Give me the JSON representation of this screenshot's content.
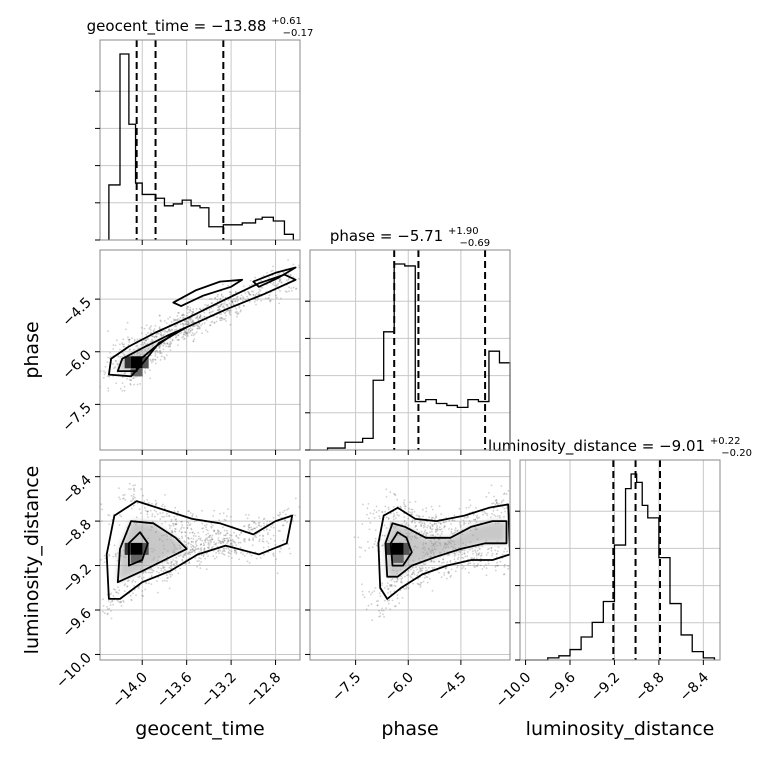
{
  "chart_data": {
    "type": "corner",
    "parameters": [
      {
        "name": "geocent_time",
        "title": "geocent_time = −13.88",
        "title_upper": "+0.61",
        "title_lower": "−0.17",
        "axis_label": "geocent_time",
        "range": [
          -14.38,
          -12.58
        ],
        "ticks": [
          -14.0,
          -13.6,
          -13.2,
          -12.8
        ],
        "tick_labels": [
          "−14.0",
          "−13.6",
          "−13.2",
          "−12.8"
        ],
        "quantiles": [
          -14.05,
          -13.88,
          -13.27
        ],
        "hist_edges": [
          -14.3,
          -14.2,
          -14.12,
          -14.06,
          -14.0,
          -13.88,
          -13.8,
          -13.72,
          -13.64,
          -13.56,
          -13.48,
          -13.4,
          -13.27,
          -13.1,
          -12.98,
          -12.92,
          -12.82,
          -12.72,
          -12.64
        ],
        "hist_heights": [
          0.29,
          0.98,
          0.61,
          0.3,
          0.24,
          0.22,
          0.18,
          0.19,
          0.21,
          0.18,
          0.17,
          0.07,
          0.08,
          0.09,
          0.11,
          0.12,
          0.1,
          0.03
        ]
      },
      {
        "name": "phase",
        "title": "phase = −5.71",
        "title_upper": "+1.90",
        "title_lower": "−0.69",
        "axis_label": "phase",
        "range": [
          -8.8,
          -3.1
        ],
        "ticks": [
          -7.5,
          -6.0,
          -4.5
        ],
        "tick_labels": [
          "−7.5",
          "−6.0",
          "−4.5"
        ],
        "quantiles": [
          -6.4,
          -5.71,
          -3.81
        ],
        "hist_edges": [
          -8.8,
          -8.3,
          -7.8,
          -7.3,
          -7.0,
          -6.7,
          -6.4,
          -6.1,
          -5.8,
          -5.5,
          -5.2,
          -4.9,
          -4.6,
          -4.3,
          -4.0,
          -3.7,
          -3.4,
          -3.1
        ],
        "hist_heights": [
          0.0,
          0.01,
          0.04,
          0.06,
          0.36,
          0.61,
          0.96,
          0.95,
          0.25,
          0.26,
          0.24,
          0.23,
          0.22,
          0.26,
          0.25,
          0.51,
          0.45
        ],
        "hist_max": 1.0
      },
      {
        "name": "luminosity_distance",
        "title": "luminosity_distance = −9.01",
        "title_upper": "+0.22",
        "title_lower": "−0.20",
        "axis_label": "luminosity_distance",
        "range": [
          -10.05,
          -8.25
        ],
        "ticks": [
          -10.0,
          -9.6,
          -9.2,
          -8.8,
          -8.4
        ],
        "tick_labels": [
          "−10.0",
          "−9.6",
          "−9.2",
          "−8.8",
          "−8.4"
        ],
        "quantiles": [
          -9.21,
          -9.01,
          -8.79
        ],
        "hist_edges": [
          -10.0,
          -9.9,
          -9.8,
          -9.7,
          -9.6,
          -9.5,
          -9.4,
          -9.3,
          -9.2,
          -9.1,
          -9.05,
          -9.0,
          -8.95,
          -8.9,
          -8.8,
          -8.7,
          -8.6,
          -8.5,
          -8.4,
          -8.3
        ],
        "hist_heights": [
          0.0,
          0.0,
          0.01,
          0.02,
          0.05,
          0.11,
          0.18,
          0.28,
          0.55,
          0.82,
          0.89,
          0.85,
          0.74,
          0.68,
          0.49,
          0.27,
          0.12,
          0.04,
          0.01
        ]
      }
    ],
    "pairs": [
      {
        "x": "geocent_time",
        "y": "phase",
        "density_peak": [
          -14.05,
          -6.3
        ],
        "contours": [
          [
            [
              -14.3,
              -6.65
            ],
            [
              -14.28,
              -6.2
            ],
            [
              -14.12,
              -5.85
            ],
            [
              -13.88,
              -5.45
            ],
            [
              -13.6,
              -5.05
            ],
            [
              -13.28,
              -4.55
            ],
            [
              -12.95,
              -4.05
            ],
            [
              -12.72,
              -3.8
            ],
            [
              -12.62,
              -3.95
            ],
            [
              -12.9,
              -4.35
            ],
            [
              -13.25,
              -4.8
            ],
            [
              -13.6,
              -5.3
            ],
            [
              -13.85,
              -5.75
            ],
            [
              -14.0,
              -6.35
            ],
            [
              -14.1,
              -6.7
            ]
          ],
          [
            [
              -14.22,
              -6.55
            ],
            [
              -14.18,
              -6.2
            ],
            [
              -14.0,
              -5.9
            ],
            [
              -13.78,
              -5.55
            ],
            [
              -13.6,
              -5.3
            ],
            [
              -13.7,
              -5.45
            ],
            [
              -13.88,
              -5.85
            ],
            [
              -14.05,
              -6.3
            ],
            [
              -14.05,
              -6.55
            ]
          ],
          [
            [
              -13.72,
              -4.6
            ],
            [
              -13.52,
              -4.25
            ],
            [
              -13.3,
              -4.0
            ],
            [
              -13.1,
              -3.95
            ],
            [
              -13.2,
              -4.15
            ],
            [
              -13.45,
              -4.4
            ],
            [
              -13.65,
              -4.7
            ]
          ],
          [
            [
              -13.0,
              -4.0
            ],
            [
              -12.8,
              -3.75
            ],
            [
              -12.62,
              -3.6
            ],
            [
              -12.78,
              -3.9
            ],
            [
              -12.95,
              -4.15
            ]
          ]
        ]
      },
      {
        "x": "geocent_time",
        "y": "luminosity_distance",
        "density_peak": [
          -14.05,
          -9.05
        ],
        "contours": [
          [
            [
              -14.3,
              -9.5
            ],
            [
              -14.32,
              -9.1
            ],
            [
              -14.25,
              -8.75
            ],
            [
              -14.05,
              -8.62
            ],
            [
              -13.8,
              -8.7
            ],
            [
              -13.55,
              -8.78
            ],
            [
              -13.3,
              -8.82
            ],
            [
              -13.0,
              -8.92
            ],
            [
              -12.8,
              -8.8
            ],
            [
              -12.65,
              -8.75
            ],
            [
              -12.7,
              -9.0
            ],
            [
              -12.95,
              -9.1
            ],
            [
              -13.25,
              -9.02
            ],
            [
              -13.5,
              -9.1
            ],
            [
              -13.75,
              -9.25
            ],
            [
              -14.0,
              -9.35
            ],
            [
              -14.2,
              -9.5
            ]
          ],
          [
            [
              -14.22,
              -9.35
            ],
            [
              -14.2,
              -9.05
            ],
            [
              -14.1,
              -8.8
            ],
            [
              -13.9,
              -8.82
            ],
            [
              -13.7,
              -8.95
            ],
            [
              -13.6,
              -9.05
            ],
            [
              -13.8,
              -9.15
            ],
            [
              -14.0,
              -9.25
            ]
          ],
          [
            [
              -14.12,
              -9.2
            ],
            [
              -14.12,
              -9.0
            ],
            [
              -14.02,
              -8.9
            ],
            [
              -13.95,
              -9.0
            ],
            [
              -14.0,
              -9.15
            ]
          ]
        ]
      },
      {
        "x": "phase",
        "y": "luminosity_distance",
        "density_peak": [
          -6.3,
          -9.05
        ],
        "contours": [
          [
            [
              -6.8,
              -9.4
            ],
            [
              -6.85,
              -9.0
            ],
            [
              -6.7,
              -8.75
            ],
            [
              -6.3,
              -8.68
            ],
            [
              -5.8,
              -8.78
            ],
            [
              -5.2,
              -8.8
            ],
            [
              -4.4,
              -8.75
            ],
            [
              -3.7,
              -8.68
            ],
            [
              -3.15,
              -8.65
            ],
            [
              -3.1,
              -9.1
            ],
            [
              -3.6,
              -9.15
            ],
            [
              -4.2,
              -9.15
            ],
            [
              -4.9,
              -9.2
            ],
            [
              -5.6,
              -9.28
            ],
            [
              -6.2,
              -9.4
            ],
            [
              -6.6,
              -9.5
            ]
          ],
          [
            [
              -6.6,
              -9.3
            ],
            [
              -6.65,
              -9.0
            ],
            [
              -6.45,
              -8.82
            ],
            [
              -6.1,
              -8.85
            ],
            [
              -5.5,
              -8.95
            ],
            [
              -4.8,
              -8.95
            ],
            [
              -4.2,
              -8.85
            ],
            [
              -3.6,
              -8.8
            ],
            [
              -3.2,
              -8.8
            ],
            [
              -3.2,
              -9.0
            ],
            [
              -3.8,
              -9.0
            ],
            [
              -4.5,
              -9.05
            ],
            [
              -5.2,
              -9.12
            ],
            [
              -5.9,
              -9.2
            ],
            [
              -6.3,
              -9.3
            ]
          ],
          [
            [
              -6.45,
              -9.2
            ],
            [
              -6.5,
              -9.0
            ],
            [
              -6.3,
              -8.9
            ],
            [
              -6.05,
              -8.95
            ],
            [
              -5.9,
              -9.08
            ],
            [
              -6.15,
              -9.2
            ]
          ]
        ]
      }
    ],
    "grid": true
  }
}
